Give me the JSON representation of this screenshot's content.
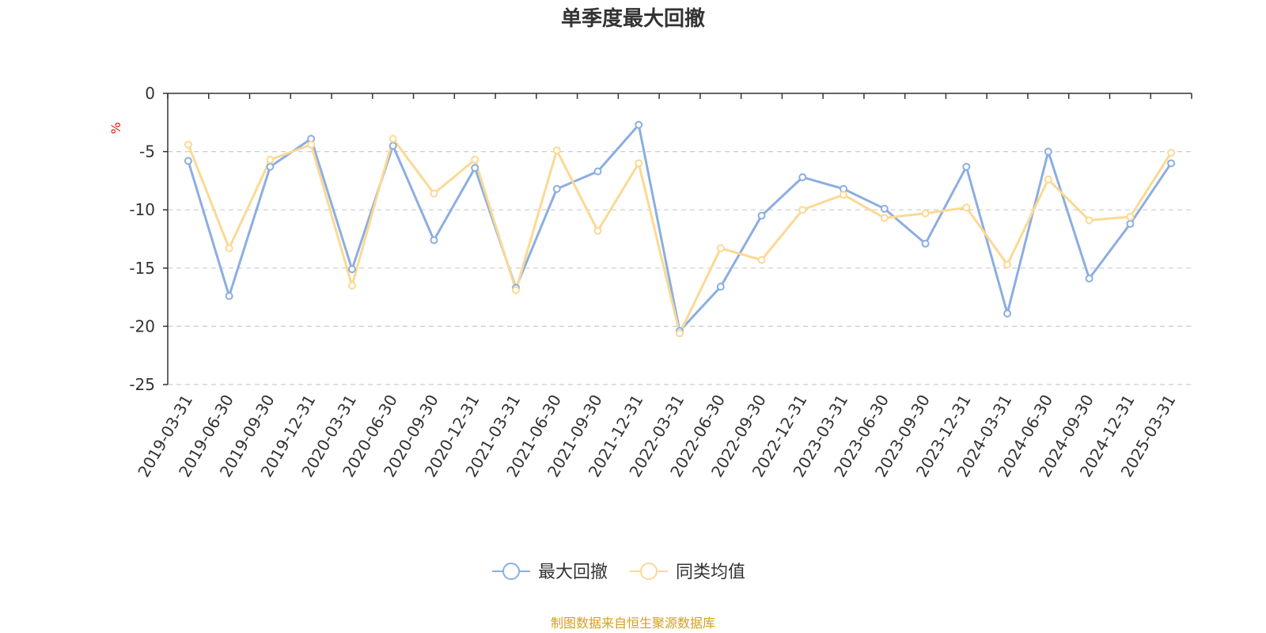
{
  "chart_data": {
    "type": "line",
    "title": "单季度最大回撤",
    "ylabel": "%",
    "x": [
      "2019-03-31",
      "2019-06-30",
      "2019-09-30",
      "2019-12-31",
      "2020-03-31",
      "2020-06-30",
      "2020-09-30",
      "2020-12-31",
      "2021-03-31",
      "2021-06-30",
      "2021-09-30",
      "2021-12-31",
      "2022-03-31",
      "2022-06-30",
      "2022-09-30",
      "2022-12-31",
      "2023-03-31",
      "2023-06-30",
      "2023-09-30",
      "2023-12-31",
      "2024-03-31",
      "2024-06-30",
      "2024-09-30",
      "2024-12-31",
      "2025-03-31"
    ],
    "y_ticks": [
      "0",
      "-5",
      "-10",
      "-15",
      "-20",
      "-25"
    ],
    "ylim": [
      -25,
      0
    ],
    "grid": true,
    "legend_position": "bottom",
    "series": [
      {
        "name": "最大回撤",
        "color": "#8caee0",
        "values": [
          -5.8,
          -17.4,
          -6.3,
          -3.9,
          -15.1,
          -4.5,
          -12.6,
          -6.4,
          -16.7,
          -8.2,
          -6.7,
          -2.7,
          -20.4,
          -16.6,
          -10.5,
          -7.2,
          -8.2,
          -9.9,
          -12.9,
          -6.3,
          -18.9,
          -5.0,
          -15.9,
          -11.2,
          -6.0
        ]
      },
      {
        "name": "同类均值",
        "color": "#fbd994",
        "values": [
          -4.4,
          -13.3,
          -5.7,
          -4.4,
          -16.5,
          -3.9,
          -8.6,
          -5.7,
          -16.9,
          -4.9,
          -11.8,
          -6.0,
          -20.6,
          -13.3,
          -14.3,
          -10.0,
          -8.7,
          -10.7,
          -10.3,
          -9.8,
          -14.7,
          -7.4,
          -10.9,
          -10.6,
          -5.1
        ]
      }
    ],
    "source": "制图数据来自恒生聚源数据库"
  }
}
